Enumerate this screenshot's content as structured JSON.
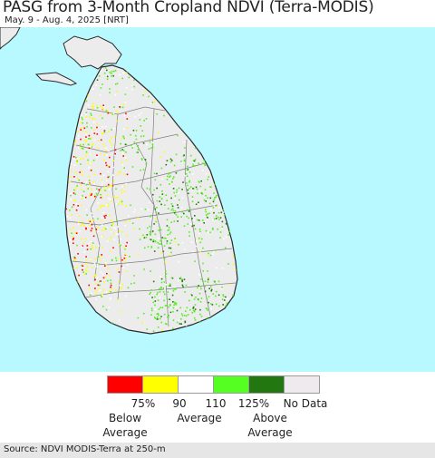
{
  "header": {
    "title": "PASG from 3-Month Cropland NDVI (Terra-MODIS)",
    "subtitle": "May. 9 - Aug. 4, 2025 [NRT]"
  },
  "map": {
    "ocean_color": "#b8f8ff",
    "land_color": "#ececec",
    "border_color": "#808080",
    "coast_color": "#2a2a2a",
    "pixel_colors": [
      "#ff0000",
      "#ffff00",
      "#ffffff",
      "#55ee22",
      "#227711"
    ]
  },
  "legend": {
    "colors": [
      "#ff0000",
      "#ffff00",
      "#ffffff",
      "#55ff22",
      "#227711",
      "#eeeaee"
    ],
    "ticks": [
      "75%",
      "90",
      "110",
      "125%",
      "No Data"
    ],
    "below": [
      "Below",
      "Average"
    ],
    "average": "Average",
    "above": [
      "Above",
      "Average"
    ]
  },
  "footer": {
    "source": "Source: NDVI MODIS-Terra at 250-m"
  }
}
